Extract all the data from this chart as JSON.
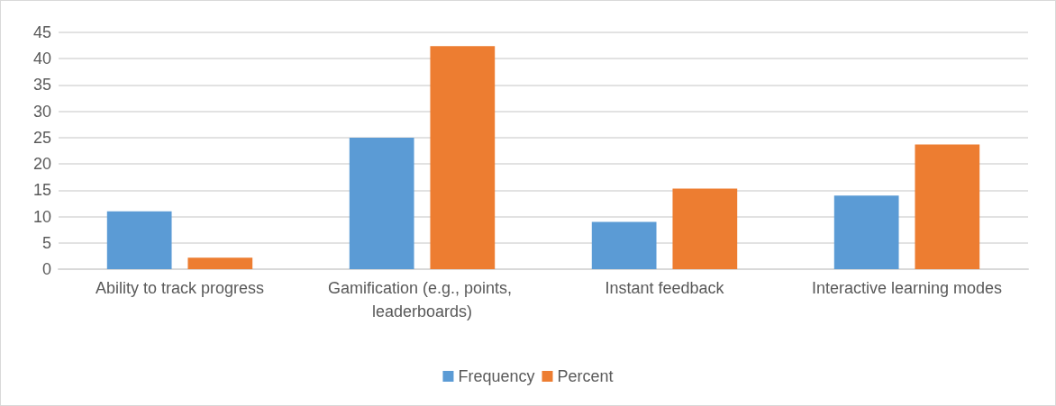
{
  "chart_data": {
    "type": "bar",
    "categories": [
      "Ability to track progress",
      "Gamification (e.g., points, leaderboards)",
      "Instant feedback",
      "Interactive learning modes"
    ],
    "series": [
      {
        "name": "Frequency",
        "color": "#5b9bd5",
        "values": [
          11,
          25,
          9,
          14
        ]
      },
      {
        "name": "Percent",
        "color": "#ed7d31",
        "values": [
          2.2,
          42.4,
          15.3,
          23.7
        ]
      }
    ],
    "ylim": [
      0,
      45
    ],
    "yticks": [
      0,
      5,
      10,
      15,
      20,
      25,
      30,
      35,
      40,
      45
    ],
    "grid": "y",
    "legend": "bottom"
  }
}
